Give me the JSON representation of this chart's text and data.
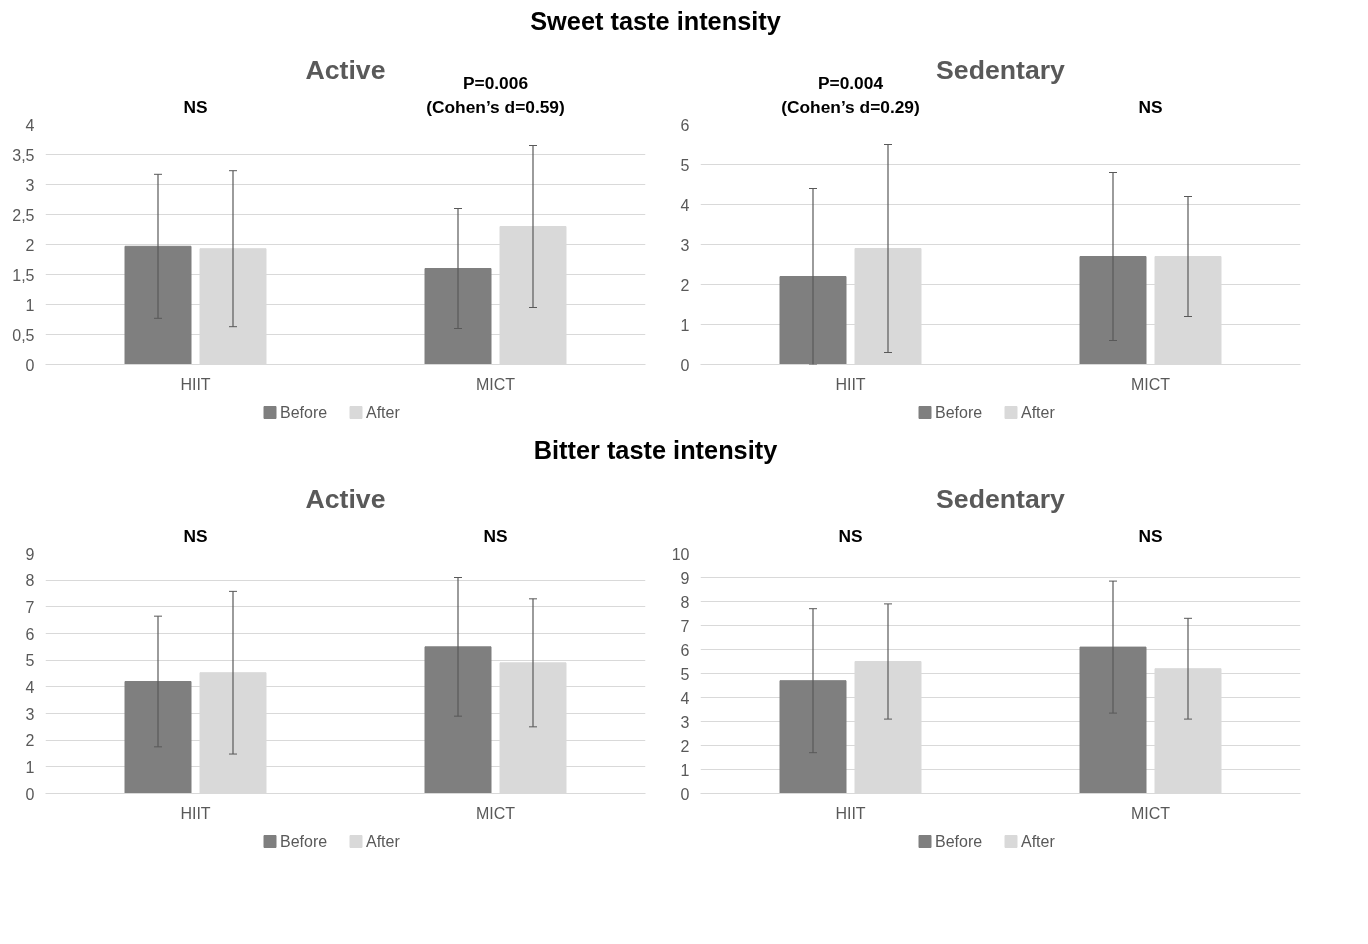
{
  "chart_data": [
    {
      "type": "other",
      "title": "Sweet taste intensity"
    },
    {
      "type": "bar",
      "title": "Active",
      "annotations": [
        "NS",
        "P=0.006\n(Cohen’s d=0.59)"
      ],
      "categories": [
        "HIIT",
        "MICT"
      ],
      "series": [
        {
          "name": "Before",
          "color": "#7f7f7f",
          "values": [
            1.97,
            1.6
          ],
          "errors": [
            1.2,
            1.0
          ]
        },
        {
          "name": "After",
          "color": "#d9d9d9",
          "values": [
            1.93,
            2.3
          ],
          "errors": [
            1.3,
            1.35
          ]
        }
      ],
      "ylim": [
        0,
        4
      ],
      "yticks": [
        0,
        {
          "value": 0.5,
          "label": "0,5"
        },
        1,
        {
          "value": 1.5,
          "label": "1,5"
        },
        2,
        {
          "value": 2.5,
          "label": "2,5"
        },
        3,
        {
          "value": 3.5,
          "label": "3,5"
        },
        4
      ],
      "grid": "y",
      "legend": "bottom"
    },
    {
      "type": "bar",
      "title": "Sedentary",
      "annotations": [
        "P=0.004\n(Cohen’s d=0.29)",
        "NS"
      ],
      "categories": [
        "HIIT",
        "MICT"
      ],
      "series": [
        {
          "name": "Before",
          "color": "#7f7f7f",
          "values": [
            2.2,
            2.7
          ],
          "errors": [
            2.2,
            2.1
          ]
        },
        {
          "name": "After",
          "color": "#d9d9d9",
          "values": [
            2.9,
            2.7
          ],
          "errors": [
            2.6,
            1.5
          ]
        }
      ],
      "ylim": [
        0,
        6
      ],
      "yticks": [
        0,
        1,
        2,
        3,
        4,
        5,
        6
      ],
      "grid": "y",
      "legend": "bottom"
    },
    {
      "type": "other",
      "title": "Bitter taste intensity"
    },
    {
      "type": "bar",
      "title": "Active",
      "annotations": [
        "NS",
        "NS"
      ],
      "categories": [
        "HIIT",
        "MICT"
      ],
      "series": [
        {
          "name": "Before",
          "color": "#7f7f7f",
          "values": [
            4.2,
            5.5
          ],
          "errors": [
            2.45,
            2.6
          ]
        },
        {
          "name": "After",
          "color": "#d9d9d9",
          "values": [
            4.53,
            4.9
          ],
          "errors": [
            3.05,
            2.4
          ]
        }
      ],
      "ylim": [
        0,
        9
      ],
      "yticks": [
        0,
        1,
        2,
        3,
        4,
        5,
        6,
        7,
        8,
        9
      ],
      "grid": "y",
      "legend": "bottom"
    },
    {
      "type": "bar",
      "title": "Sedentary",
      "annotations": [
        "NS",
        "NS"
      ],
      "categories": [
        "HIIT",
        "MICT"
      ],
      "series": [
        {
          "name": "Before",
          "color": "#7f7f7f",
          "values": [
            4.7,
            6.1
          ],
          "errors": [
            3.0,
            2.75
          ]
        },
        {
          "name": "After",
          "color": "#d9d9d9",
          "values": [
            5.5,
            5.2
          ],
          "errors": [
            2.4,
            2.1
          ]
        }
      ],
      "ylim": [
        0,
        10
      ],
      "yticks": [
        0,
        1,
        2,
        3,
        4,
        5,
        6,
        7,
        8,
        9,
        10
      ],
      "grid": "y",
      "legend": "bottom"
    }
  ]
}
